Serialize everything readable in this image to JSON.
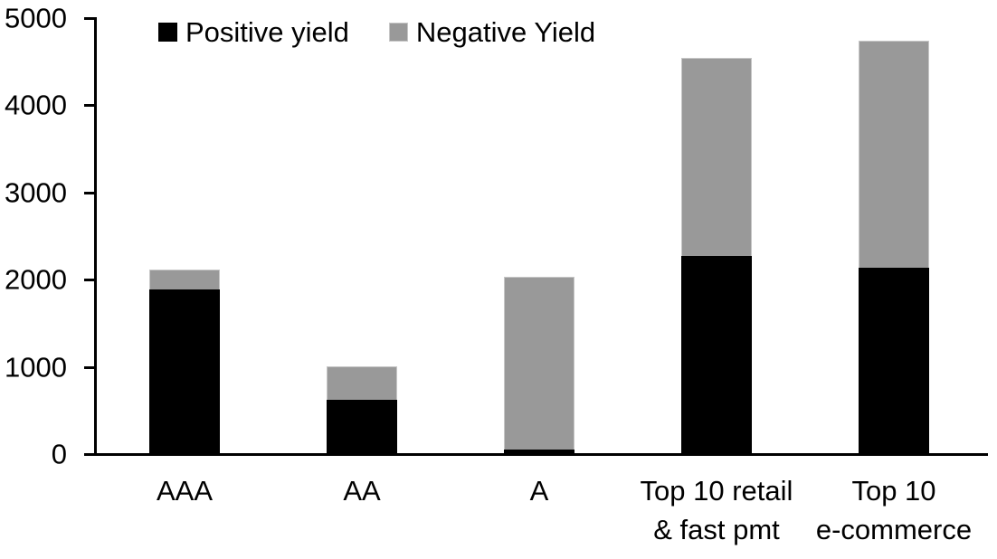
{
  "chart_data": {
    "type": "bar",
    "stacked": true,
    "title": "",
    "xlabel": "",
    "ylabel": "",
    "categories": [
      "AAA",
      "AA",
      "A",
      "Top 10 retail\n& fast pmt",
      "Top 10\ne-commerce"
    ],
    "series": [
      {
        "name": "Positive yield",
        "color": "#000000",
        "values": [
          1890,
          620,
          50,
          2275,
          2140
        ]
      },
      {
        "name": "Negative Yield",
        "color": "#999999",
        "values": [
          230,
          385,
          1985,
          2270,
          2600
        ]
      }
    ],
    "yticks": [
      0,
      1000,
      2000,
      3000,
      4000,
      5000
    ],
    "ylim": [
      0,
      5000
    ],
    "grid": false,
    "legend_position": "top-left",
    "colors": {
      "axis": "#000000",
      "text": "#000000",
      "negative_border": "#c6c6c6",
      "background": "#ffffff"
    }
  }
}
